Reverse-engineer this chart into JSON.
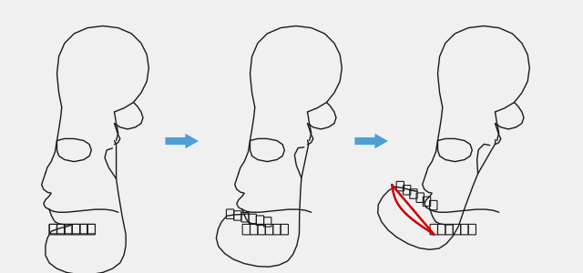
{
  "bg_color": "#f0f0f0",
  "skull_line_color": "#1a1a1a",
  "skull_lw": 1.0,
  "arrow_color": "#4d9fd6",
  "red_color": "#cc0000",
  "figsize": [
    6.4,
    3.0
  ],
  "dpi": 100
}
